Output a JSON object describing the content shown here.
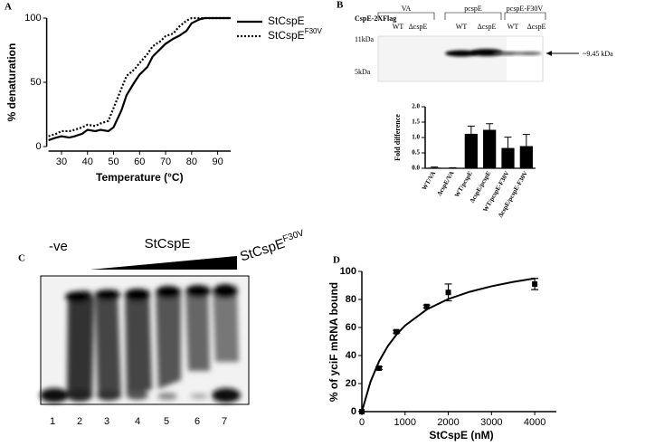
{
  "panel_labels": [
    "A",
    "B",
    "C",
    "D"
  ],
  "chart_data": [
    {
      "type": "line",
      "xlabel": "Temperature (°C)",
      "ylabel": "% denaturation",
      "x": [
        25,
        28,
        30,
        33,
        35,
        38,
        40,
        43,
        45,
        48,
        50,
        53,
        55,
        58,
        60,
        63,
        65,
        68,
        70,
        73,
        75,
        78,
        80,
        83,
        85,
        88,
        90,
        95
      ],
      "series": [
        {
          "name": "StCspE",
          "color": "#000000",
          "style": "solid",
          "values": [
            5,
            7,
            8,
            7,
            8,
            10,
            13,
            12,
            13,
            12,
            15,
            28,
            40,
            50,
            56,
            62,
            70,
            76,
            80,
            84,
            86,
            90,
            96,
            99,
            100,
            100,
            100,
            100
          ]
        },
        {
          "name": "StCspE",
          "name_superscript": "F30V",
          "color": "#000000",
          "style": "dotted",
          "values": [
            8,
            10,
            12,
            12,
            13,
            15,
            17,
            16,
            18,
            20,
            30,
            45,
            55,
            60,
            65,
            72,
            78,
            82,
            86,
            88,
            93,
            98,
            100,
            100,
            100,
            100,
            100,
            100
          ]
        }
      ],
      "xlim": [
        25,
        95
      ],
      "xticks": [
        30,
        40,
        50,
        60,
        70,
        80,
        90
      ],
      "ylim": [
        0,
        100
      ],
      "yticks": [
        0,
        50,
        100
      ]
    },
    {
      "type": "bar",
      "ylabel": "Fold difference",
      "categories": [
        "WT/VA",
        "ΔcspE/VA",
        "WT/pcspE",
        "ΔcspE/pcspE",
        "WT/pcspE-F30V",
        "ΔcspE/pcspE-F30V"
      ],
      "values": [
        0.02,
        0.01,
        1.12,
        1.25,
        0.66,
        0.72
      ],
      "errors": [
        0.02,
        0.01,
        0.25,
        0.2,
        0.35,
        0.38
      ],
      "color": "#000000",
      "ylim": [
        0,
        2
      ],
      "yticks": [
        {
          "value": 0,
          "label": "0.0"
        },
        {
          "value": 0.5,
          "label": "0.5"
        },
        {
          "value": 1,
          "label": "1.0"
        },
        {
          "value": 1.5,
          "label": "1.5"
        },
        {
          "value": 2,
          "label": "2.0"
        }
      ]
    },
    {
      "type": "scatter",
      "xlabel": "StCspE (nM)",
      "ylabel": "% of yciF mRNA bound",
      "x": [
        0,
        400,
        800,
        1500,
        2000,
        4000
      ],
      "values": [
        0,
        31,
        57,
        75,
        85,
        91
      ],
      "errors": [
        0,
        1,
        1,
        1,
        6,
        4
      ],
      "curve": {
        "x": [
          0,
          200,
          400,
          600,
          800,
          1000,
          1500,
          2000,
          2500,
          3000,
          3500,
          4000
        ],
        "values": [
          0,
          21.3,
          36,
          46.7,
          54.9,
          61.4,
          72.8,
          80.3,
          85.5,
          89.4,
          92.5,
          95
        ]
      },
      "xlim": [
        0,
        4500
      ],
      "xticks": [
        0,
        1000,
        2000,
        3000,
        4000
      ],
      "ylim": [
        0,
        100
      ],
      "yticks": [
        0,
        20,
        40,
        60,
        80,
        100
      ]
    }
  ],
  "blot": {
    "title": "CspE-2XFlag",
    "groups": [
      "VA",
      "pcspE",
      "pcspE-F30V"
    ],
    "lanes": [
      "WT",
      "ΔcspE",
      "WT",
      "ΔcspE",
      "WT",
      "ΔcspE"
    ],
    "markers": [
      "11kDa",
      "5kDa"
    ],
    "arrow_label": "~9.45 kDa"
  },
  "gel": {
    "negative": "-ve",
    "protein": "StCspE",
    "mutant": "StCspE",
    "mutant_superscript": "F30V",
    "lanes": [
      "1",
      "2",
      "3",
      "4",
      "5",
      "6",
      "7"
    ]
  }
}
